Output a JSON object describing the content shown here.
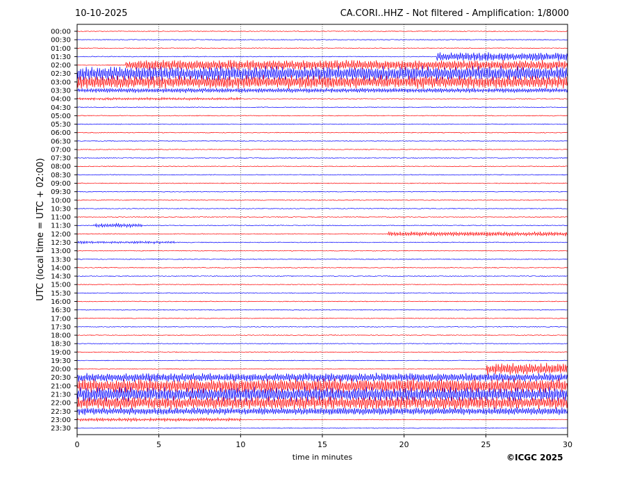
{
  "header": {
    "date": "10-10-2025",
    "station_title": "CA.CORI..HHZ - Not filtered - Amplification: 1/8000"
  },
  "footer": {
    "copyright": "©ICGC 2025"
  },
  "colors": {
    "trace_a": "#ff0000",
    "trace_b": "#0000ff",
    "grid": "#000000"
  },
  "chart_data": {
    "type": "line",
    "title": "CA.CORI..HHZ - Not filtered - Amplification: 1/8000",
    "xlabel": "time in minutes",
    "ylabel": "UTC (local time = UTC + 02:00)",
    "xlim": [
      0,
      30
    ],
    "x_ticks": [
      "0",
      "5",
      "10",
      "15",
      "20",
      "25",
      "30"
    ],
    "grid": "vertical dotted at 5-minute intervals",
    "rows": [
      "00:00",
      "00:30",
      "01:00",
      "01:30",
      "02:00",
      "02:30",
      "03:00",
      "03:30",
      "04:00",
      "04:30",
      "05:00",
      "05:30",
      "06:00",
      "06:30",
      "07:00",
      "07:30",
      "08:00",
      "08:30",
      "09:00",
      "09:30",
      "10:00",
      "10:30",
      "11:00",
      "11:30",
      "12:00",
      "12:30",
      "13:00",
      "13:30",
      "14:00",
      "14:30",
      "15:00",
      "15:30",
      "16:00",
      "16:30",
      "17:00",
      "17:30",
      "18:00",
      "18:30",
      "19:00",
      "19:30",
      "20:00",
      "20:30",
      "21:00",
      "21:30",
      "22:00",
      "22:30",
      "23:00",
      "23:30"
    ],
    "row_colors": [
      "#ff0000",
      "#0000ff"
    ],
    "activity": [
      {
        "row": "01:30",
        "start_min": 22,
        "end_min": 30,
        "amplitude": 0.6
      },
      {
        "row": "02:00",
        "start_min": 3,
        "end_min": 30,
        "amplitude": 0.7
      },
      {
        "row": "02:30",
        "start_min": 0,
        "end_min": 30,
        "amplitude": 1.0
      },
      {
        "row": "03:00",
        "start_min": 0,
        "end_min": 30,
        "amplitude": 0.9
      },
      {
        "row": "03:30",
        "start_min": 0,
        "end_min": 30,
        "amplitude": 0.3
      },
      {
        "row": "04:00",
        "start_min": 0,
        "end_min": 10,
        "amplitude": 0.15
      },
      {
        "row": "11:30",
        "start_min": 1,
        "end_min": 4,
        "amplitude": 0.25
      },
      {
        "row": "12:00",
        "start_min": 19,
        "end_min": 30,
        "amplitude": 0.3
      },
      {
        "row": "12:30",
        "start_min": 0,
        "end_min": 6,
        "amplitude": 0.15
      },
      {
        "row": "20:00",
        "start_min": 25,
        "end_min": 30,
        "amplitude": 0.8
      },
      {
        "row": "20:30",
        "start_min": 0,
        "end_min": 30,
        "amplitude": 0.6
      },
      {
        "row": "21:00",
        "start_min": 0,
        "end_min": 30,
        "amplitude": 1.0
      },
      {
        "row": "21:30",
        "start_min": 0,
        "end_min": 30,
        "amplitude": 1.0
      },
      {
        "row": "22:00",
        "start_min": 0,
        "end_min": 30,
        "amplitude": 0.9
      },
      {
        "row": "22:30",
        "start_min": 0,
        "end_min": 30,
        "amplitude": 0.5
      },
      {
        "row": "23:00",
        "start_min": 0,
        "end_min": 10,
        "amplitude": 0.2
      }
    ]
  }
}
